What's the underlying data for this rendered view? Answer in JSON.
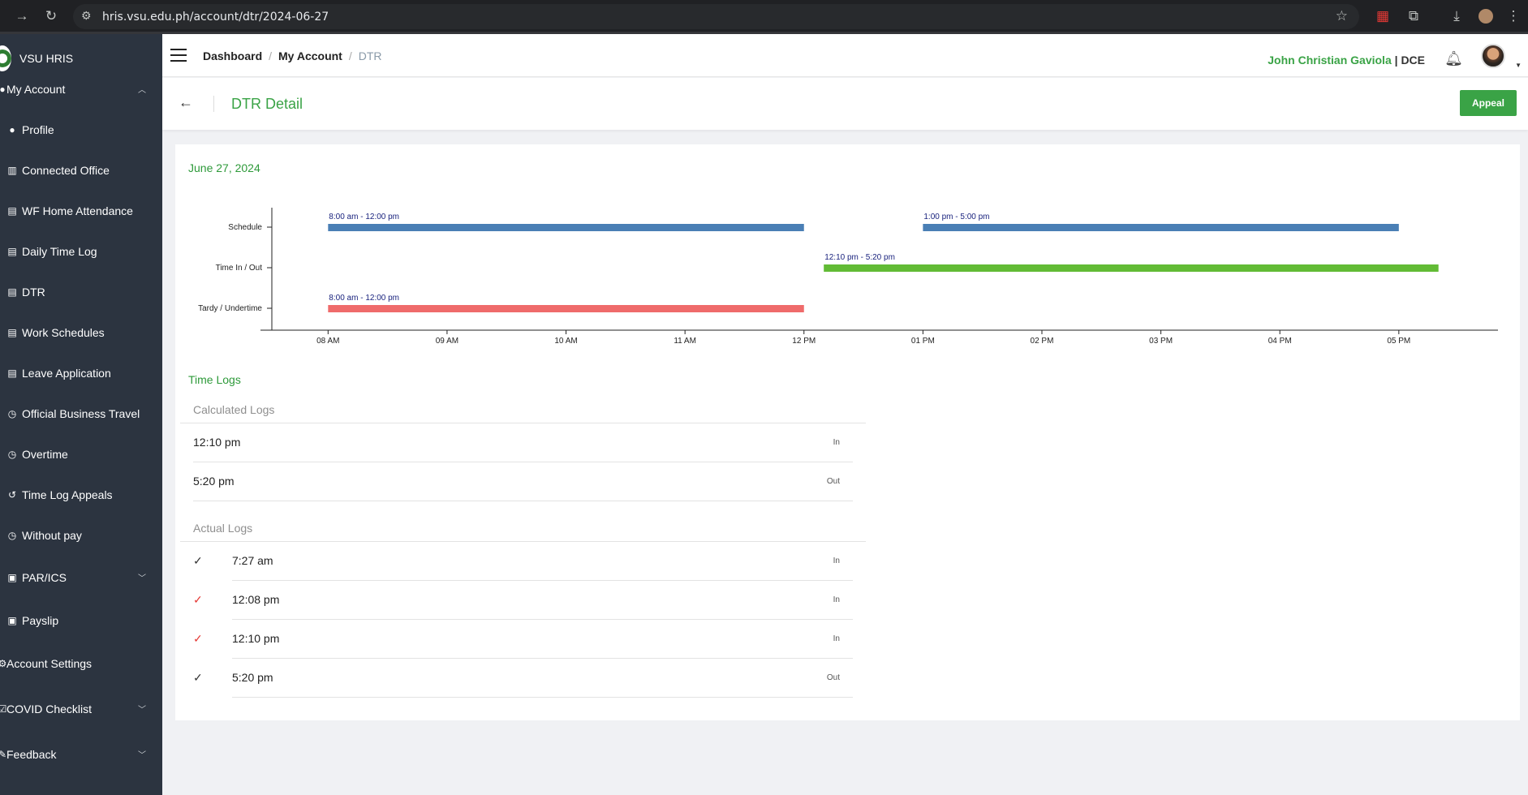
{
  "browser": {
    "url": "hris.vsu.edu.ph/account/dtr/2024-06-27"
  },
  "sidebar": {
    "brand": "VSU HRIS",
    "items": [
      {
        "label": "My Account",
        "icon": "user-icon",
        "expandable": true,
        "expanded": true
      },
      {
        "label": "Profile",
        "icon": "user-circle-icon"
      },
      {
        "label": "Connected Office",
        "icon": "building-icon"
      },
      {
        "label": "WF Home Attendance",
        "icon": "calendar-icon"
      },
      {
        "label": "Daily Time Log",
        "icon": "calendar-icon"
      },
      {
        "label": "DTR",
        "icon": "calendar-icon"
      },
      {
        "label": "Work Schedules",
        "icon": "calendar-icon"
      },
      {
        "label": "Leave Application",
        "icon": "calendar-icon"
      },
      {
        "label": "Official Business Travel",
        "icon": "clock-icon"
      },
      {
        "label": "Overtime",
        "icon": "clock-icon"
      },
      {
        "label": "Time Log Appeals",
        "icon": "history-icon"
      },
      {
        "label": "Without pay",
        "icon": "clock-icon"
      },
      {
        "label": "PAR/ICS",
        "icon": "id-card-icon",
        "expandable": true
      },
      {
        "label": "Payslip",
        "icon": "id-card-icon"
      },
      {
        "label": "Account Settings",
        "icon": "gear-icon"
      },
      {
        "label": "COVID Checklist",
        "icon": "check-list-icon",
        "expandable": true
      },
      {
        "label": "Feedback",
        "icon": "feedback-icon",
        "expandable": true
      }
    ]
  },
  "header": {
    "breadcrumbs": [
      "Dashboard",
      "My Account",
      "DTR"
    ],
    "user_name": "John Christian Gaviola",
    "user_sep": " | ",
    "user_dept": "DCE"
  },
  "page": {
    "title": "DTR Detail",
    "appeal_label": "Appeal",
    "date": "June 27, 2024"
  },
  "chart_data": {
    "type": "bar",
    "orientation": "horizontal-range",
    "categories": [
      "Schedule",
      "Time In / Out",
      "Tardy / Undertime"
    ],
    "x_ticks": [
      "08 AM",
      "09 AM",
      "10 AM",
      "11 AM",
      "12 PM",
      "01 PM",
      "02 PM",
      "03 PM",
      "04 PM",
      "05 PM"
    ],
    "xlim": [
      "07:30",
      "17:50"
    ],
    "grid": false,
    "series": [
      {
        "category": "Schedule",
        "start": "08:00",
        "end": "12:00",
        "label": "8:00 am - 12:00 pm",
        "color": "#4a7fb5"
      },
      {
        "category": "Schedule",
        "start": "13:00",
        "end": "17:00",
        "label": "1:00 pm - 5:00 pm",
        "color": "#4a7fb5"
      },
      {
        "category": "Time In / Out",
        "start": "12:10",
        "end": "17:20",
        "label": "12:10 pm - 5:20 pm",
        "color": "#62bb35"
      },
      {
        "category": "Tardy / Undertime",
        "start": "08:00",
        "end": "12:00",
        "label": "8:00 am - 12:00 pm",
        "color": "#ef6b6b"
      }
    ]
  },
  "time_logs": {
    "title": "Time Logs",
    "calculated_title": "Calculated Logs",
    "calculated": [
      {
        "time": "12:10 pm",
        "dir": "In"
      },
      {
        "time": "5:20 pm",
        "dir": "Out"
      }
    ],
    "actual_title": "Actual Logs",
    "actual": [
      {
        "time": "7:27 am",
        "dir": "In",
        "check_color": "#333333"
      },
      {
        "time": "12:08 pm",
        "dir": "In",
        "check_color": "#e53935"
      },
      {
        "time": "12:10 pm",
        "dir": "In",
        "check_color": "#e53935"
      },
      {
        "time": "5:20 pm",
        "dir": "Out",
        "check_color": "#333333"
      }
    ]
  }
}
